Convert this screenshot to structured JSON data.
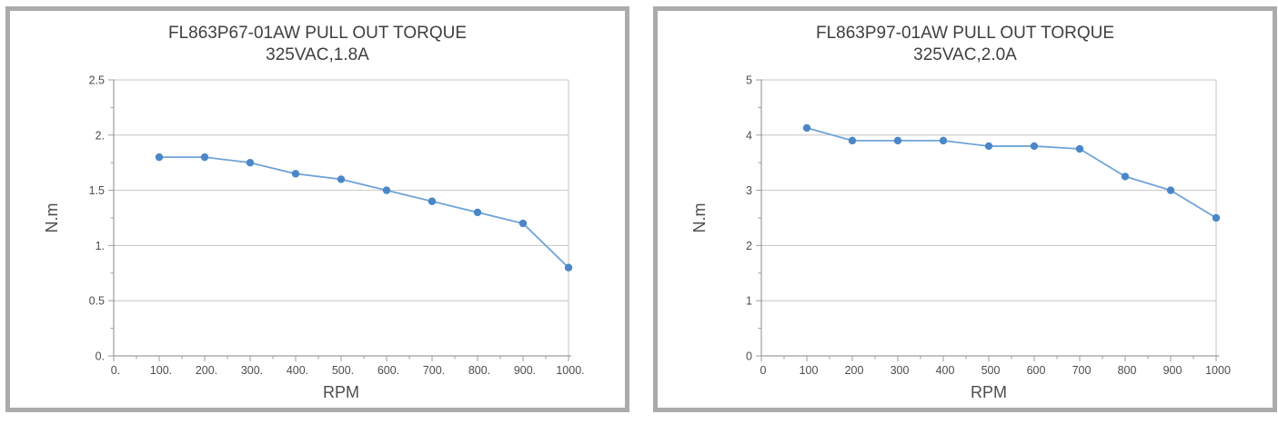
{
  "page": {
    "background_color": "#FFFFFF",
    "panel_border_color": "#ABABAB"
  },
  "chart_data": [
    {
      "type": "line",
      "title": "FL863P67-01AW PULL  OUT TORQUE",
      "subtitle": "325VAC,1.8A",
      "xlabel": "RPM",
      "ylabel": "N.m",
      "x": [
        100,
        200,
        300,
        400,
        500,
        600,
        700,
        800,
        900,
        1000
      ],
      "values": [
        1.8,
        1.8,
        1.75,
        1.65,
        1.6,
        1.5,
        1.4,
        1.3,
        1.2,
        0.8
      ],
      "xlim": [
        0,
        1000
      ],
      "ylim": [
        0,
        2.5
      ],
      "x_tick_values": [
        0,
        100,
        200,
        300,
        400,
        500,
        600,
        700,
        800,
        900,
        1000
      ],
      "x_tick_labels": [
        "0.",
        "100.",
        "200.",
        "300.",
        "400.",
        "500.",
        "600.",
        "700.",
        "800.",
        "900.",
        "1000."
      ],
      "y_tick_values": [
        0,
        0.5,
        1,
        1.5,
        2,
        2.5
      ],
      "y_tick_labels": [
        "0.",
        "0.5",
        "1.",
        "1.5",
        "2.",
        "2.5"
      ],
      "minor_x_step": 50,
      "minor_y_step": 0.25,
      "grid": "horizontal-major",
      "legend": "none",
      "colors": {
        "line": "#6FA3D8",
        "marker": "#4B87C8",
        "gridline": "#C6C6C6",
        "axis": "#9E9E9E",
        "title_text": "#3F3F3F",
        "tick_text": "#4D4D4D"
      }
    },
    {
      "type": "line",
      "title": "FL863P97-01AW   PULL OUT TORQUE",
      "subtitle": "325VAC,2.0A",
      "xlabel": "RPM",
      "ylabel": "N.m",
      "x": [
        100,
        200,
        300,
        400,
        500,
        600,
        700,
        800,
        900,
        1000
      ],
      "values": [
        4.13,
        3.9,
        3.9,
        3.9,
        3.8,
        3.8,
        3.75,
        3.25,
        3.0,
        2.5
      ],
      "xlim": [
        0,
        1000
      ],
      "ylim": [
        0,
        5
      ],
      "x_tick_values": [
        0,
        100,
        200,
        300,
        400,
        500,
        600,
        700,
        800,
        900,
        1000
      ],
      "x_tick_labels": [
        "0",
        "100",
        "200",
        "300",
        "400",
        "500",
        "600",
        "700",
        "800",
        "900",
        "1000"
      ],
      "y_tick_values": [
        0,
        1,
        2,
        3,
        4,
        5
      ],
      "y_tick_labels": [
        "0",
        "1",
        "2",
        "3",
        "4",
        "5"
      ],
      "minor_x_step": 50,
      "minor_y_step": 0.5,
      "grid": "horizontal-major",
      "legend": "none",
      "colors": {
        "line": "#6FA3D8",
        "marker": "#4B87C8",
        "gridline": "#C6C6C6",
        "axis": "#9E9E9E",
        "title_text": "#3F3F3F",
        "tick_text": "#4D4D4D"
      }
    }
  ]
}
